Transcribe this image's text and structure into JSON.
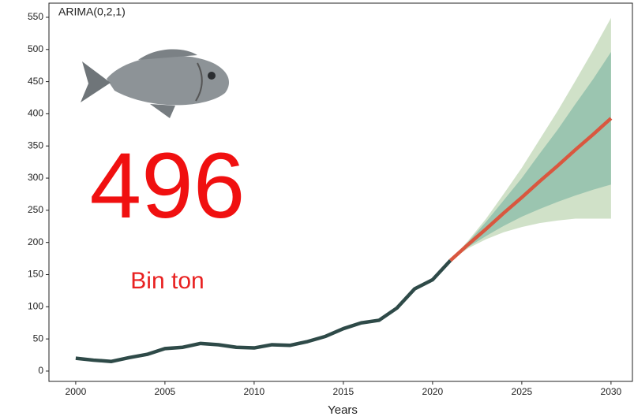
{
  "chart_data": {
    "type": "line",
    "annotation": "ARIMA(0,2,1)",
    "headline": "496",
    "headline_unit": "Bin ton",
    "x_label": "Years",
    "x": [
      2000,
      2001,
      2002,
      2003,
      2004,
      2005,
      2006,
      2007,
      2008,
      2009,
      2010,
      2011,
      2012,
      2013,
      2014,
      2015,
      2016,
      2017,
      2018,
      2019,
      2020,
      2021,
      2022,
      2023,
      2024,
      2025,
      2026,
      2027,
      2028,
      2029,
      2030
    ],
    "series": [
      {
        "color": "#2e4a48",
        "values": [
          20,
          17,
          15,
          21,
          26,
          35,
          37,
          43,
          41,
          37,
          36,
          41,
          40,
          46,
          54,
          66,
          75,
          79,
          98,
          128,
          142,
          172,
          null,
          null,
          null,
          null,
          null,
          null,
          null,
          null,
          null
        ]
      },
      {
        "color": "#d9573f",
        "values": [
          null,
          null,
          null,
          null,
          null,
          null,
          null,
          null,
          null,
          null,
          null,
          null,
          null,
          null,
          null,
          null,
          null,
          null,
          null,
          null,
          null,
          172,
          197,
          221,
          246,
          270,
          295,
          319,
          344,
          368,
          393
        ]
      }
    ],
    "bands": [
      {
        "color": "#d0e1c8",
        "lower": [
          null,
          null,
          null,
          null,
          null,
          null,
          null,
          null,
          null,
          null,
          null,
          null,
          null,
          null,
          null,
          null,
          null,
          null,
          null,
          null,
          null,
          172,
          191,
          205,
          216,
          224,
          230,
          234,
          237,
          237,
          237
        ],
        "upper": [
          null,
          null,
          null,
          null,
          null,
          null,
          null,
          null,
          null,
          null,
          null,
          null,
          null,
          null,
          null,
          null,
          null,
          null,
          null,
          null,
          null,
          172,
          203,
          237,
          276,
          316,
          360,
          404,
          451,
          499,
          549
        ]
      },
      {
        "color": "#9bc5b0",
        "lower": [
          null,
          null,
          null,
          null,
          null,
          null,
          null,
          null,
          null,
          null,
          null,
          null,
          null,
          null,
          null,
          null,
          null,
          null,
          null,
          null,
          null,
          172,
          193,
          210,
          226,
          240,
          252,
          263,
          273,
          282,
          290
        ],
        "upper": [
          null,
          null,
          null,
          null,
          null,
          null,
          null,
          null,
          null,
          null,
          null,
          null,
          null,
          null,
          null,
          null,
          null,
          null,
          null,
          null,
          null,
          172,
          201,
          232,
          266,
          300,
          338,
          375,
          415,
          454,
          496
        ]
      }
    ],
    "xlim": [
      1998.5,
      2031.2
    ],
    "xticks": [
      2000,
      2005,
      2010,
      2015,
      2020,
      2025,
      2030
    ],
    "ylim": [
      -16,
      572
    ],
    "yticks": [
      0,
      50,
      100,
      150,
      200,
      250,
      300,
      350,
      400,
      450,
      500,
      550
    ],
    "grid": false
  }
}
